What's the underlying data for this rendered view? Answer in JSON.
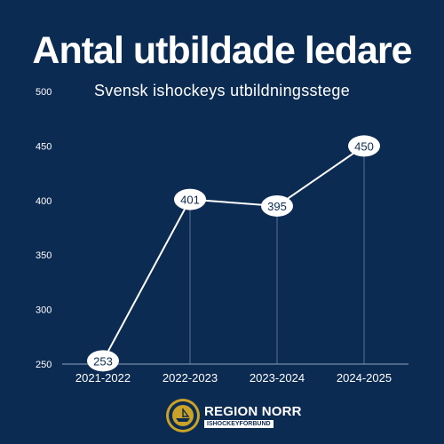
{
  "header": {
    "title": "Antal utbildade ledare",
    "subtitle": "Svensk ishockeys utbildningsstege"
  },
  "footer": {
    "brand": "REGION NORR",
    "brand_sub": "ISHOCKEYFÖRBUND",
    "logo_text": "SVENSKA ISHOCKEYFÖRBUNDET"
  },
  "colors": {
    "background": "#0c2b52",
    "line": "#ffffff",
    "label_bubble": "#ffffff",
    "label_text": "#0c2b52",
    "logo_gold": "#c9a227"
  },
  "chart_data": {
    "type": "line",
    "categories": [
      "2021-2022",
      "2022-2023",
      "2023-2024",
      "2024-2025"
    ],
    "values": [
      253,
      401,
      395,
      450
    ],
    "title": "Antal utbildade ledare",
    "subtitle": "Svensk ishockeys utbildningsstege",
    "xlabel": "",
    "ylabel": "",
    "ylim": [
      250,
      500
    ],
    "yticks": [
      250,
      300,
      350,
      400,
      450,
      500
    ],
    "grid": false,
    "data_labels": true
  }
}
